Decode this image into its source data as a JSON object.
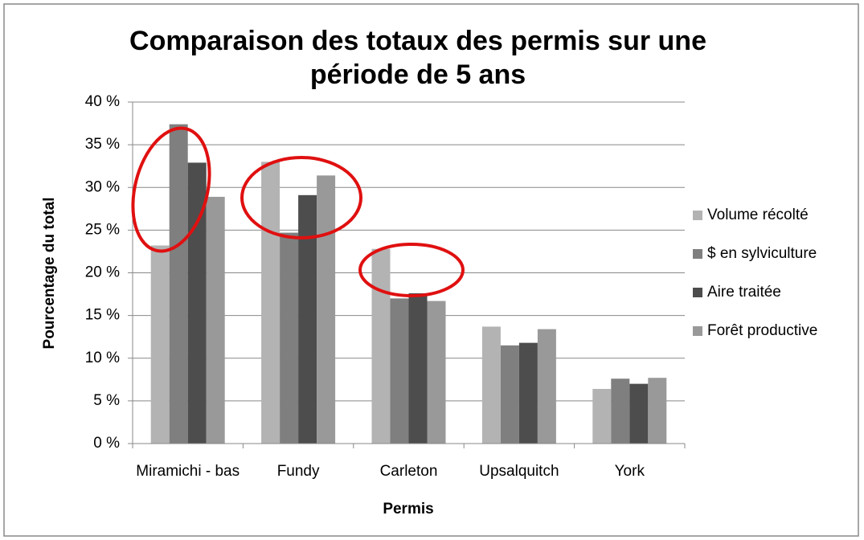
{
  "chart_data": {
    "type": "bar",
    "title": "Comparaison des totaux des permis sur une période de 5 ans",
    "xlabel": "Permis",
    "ylabel": "Pourcentage du total",
    "categories": [
      "Miramichi - bas",
      "Fundy",
      "Carleton",
      "Upsalquitch",
      "York"
    ],
    "series": [
      {
        "name": "Volume récolté",
        "color": "#b3b3b3",
        "values": [
          23.2,
          33.0,
          22.8,
          13.7,
          6.4
        ]
      },
      {
        "name": "$ en sylviculture",
        "color": "#7f7f7f",
        "values": [
          37.4,
          24.7,
          17.0,
          11.5,
          7.6
        ]
      },
      {
        "name": "Aire traitée",
        "color": "#4d4d4d",
        "values": [
          32.9,
          29.1,
          17.6,
          11.8,
          7.0
        ]
      },
      {
        "name": "Forêt productive",
        "color": "#999999",
        "values": [
          28.9,
          31.4,
          16.7,
          13.4,
          7.7
        ]
      }
    ],
    "ylim": [
      0,
      40
    ],
    "yticks": [
      {
        "value": 0,
        "label": "0 %"
      },
      {
        "value": 5,
        "label": "5 %"
      },
      {
        "value": 10,
        "label": "10 %"
      },
      {
        "value": 15,
        "label": "15 %"
      },
      {
        "value": 20,
        "label": "20 %"
      },
      {
        "value": 25,
        "label": "25 %"
      },
      {
        "value": 30,
        "label": "30 %"
      },
      {
        "value": 35,
        "label": "35 %"
      },
      {
        "value": 40,
        "label": "40 %"
      }
    ],
    "grid": true,
    "legend": "right"
  }
}
